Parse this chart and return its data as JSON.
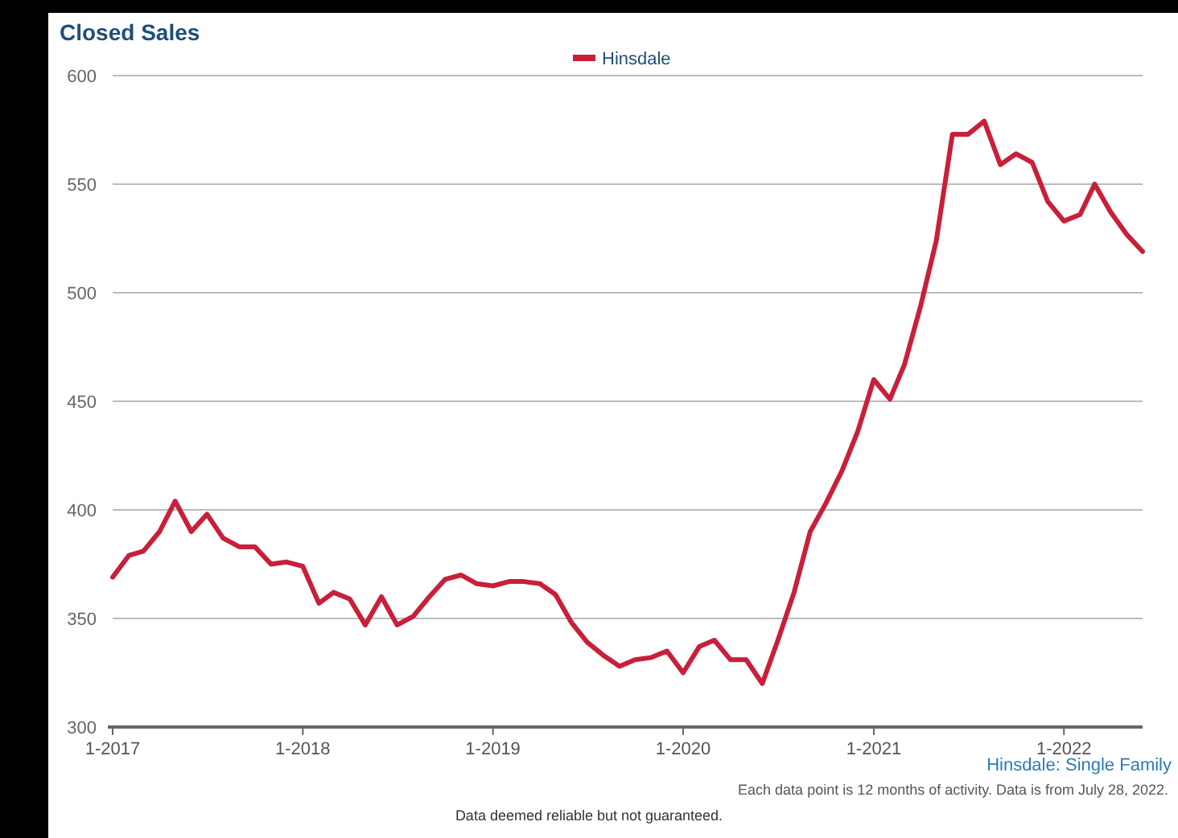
{
  "chart_data": {
    "type": "line",
    "title": "Closed Sales",
    "x": [
      "2017-01",
      "2017-02",
      "2017-03",
      "2017-04",
      "2017-05",
      "2017-06",
      "2017-07",
      "2017-08",
      "2017-09",
      "2017-10",
      "2017-11",
      "2017-12",
      "2018-01",
      "2018-02",
      "2018-03",
      "2018-04",
      "2018-05",
      "2018-06",
      "2018-07",
      "2018-08",
      "2018-09",
      "2018-10",
      "2018-11",
      "2018-12",
      "2019-01",
      "2019-02",
      "2019-03",
      "2019-04",
      "2019-05",
      "2019-06",
      "2019-07",
      "2019-08",
      "2019-09",
      "2019-10",
      "2019-11",
      "2019-12",
      "2020-01",
      "2020-02",
      "2020-03",
      "2020-04",
      "2020-05",
      "2020-06",
      "2020-07",
      "2020-08",
      "2020-09",
      "2020-10",
      "2020-11",
      "2020-12",
      "2021-01",
      "2021-02",
      "2021-03",
      "2021-04",
      "2021-05",
      "2021-06",
      "2021-07",
      "2021-08",
      "2021-09",
      "2021-10",
      "2021-11",
      "2021-12",
      "2022-01",
      "2022-02",
      "2022-03",
      "2022-04",
      "2022-05",
      "2022-06"
    ],
    "series": [
      {
        "name": "Hinsdale",
        "color": "#c8203a",
        "values": [
          369,
          379,
          381,
          390,
          404,
          390,
          398,
          387,
          383,
          383,
          375,
          376,
          374,
          357,
          362,
          359,
          347,
          360,
          347,
          351,
          360,
          368,
          370,
          366,
          365,
          367,
          367,
          366,
          361,
          348,
          339,
          333,
          328,
          331,
          332,
          335,
          325,
          337,
          340,
          331,
          331,
          320,
          340,
          362,
          390,
          403,
          418,
          436,
          460,
          451,
          467,
          494,
          524,
          573,
          573,
          579,
          559,
          564,
          560,
          542,
          533,
          536,
          550,
          537,
          527,
          519
        ]
      }
    ],
    "xlim": [
      "2017-01",
      "2022-06"
    ],
    "xticks": [
      {
        "value": "2017-01",
        "label": "1-2017"
      },
      {
        "value": "2018-01",
        "label": "1-2018"
      },
      {
        "value": "2019-01",
        "label": "1-2019"
      },
      {
        "value": "2020-01",
        "label": "1-2020"
      },
      {
        "value": "2021-01",
        "label": "1-2021"
      },
      {
        "value": "2022-01",
        "label": "1-2022"
      }
    ],
    "ylim": [
      300,
      600
    ],
    "yticks": [
      300,
      350,
      400,
      450,
      500,
      550,
      600
    ],
    "grid": "y",
    "legend": "top",
    "marker": "none",
    "line_style": "solid",
    "annotations": [
      "Hinsdale: Single Family",
      "Each data point is 12 months of activity. Data is from July 28, 2022.",
      "Data deemed reliable but not guaranteed."
    ]
  }
}
